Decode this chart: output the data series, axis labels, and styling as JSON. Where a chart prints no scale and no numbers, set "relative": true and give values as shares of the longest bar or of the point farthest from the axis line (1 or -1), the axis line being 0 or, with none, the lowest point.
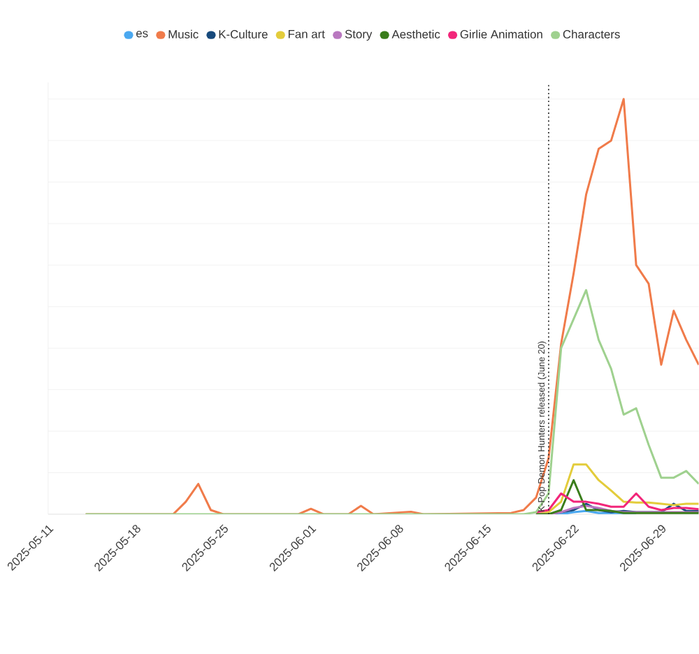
{
  "chart_data": {
    "type": "line",
    "relative": true,
    "legend": "top",
    "grid": "y",
    "line_style": "solid",
    "marker": "none",
    "xlim": [
      "2025-05-11",
      "2025-07-02"
    ],
    "xticks": [
      "2025-05-11",
      "2025-05-18",
      "2025-05-25",
      "2025-06-01",
      "2025-06-08",
      "2025-06-15",
      "2025-06-22",
      "2025-06-29"
    ],
    "ref_lines": [
      {
        "axis": "x",
        "value": "2025-06-20",
        "label": "K-Pop Demon Hunters released (June 20)",
        "line_style": "dotted",
        "color": "#333333"
      }
    ],
    "series": [
      {
        "name": "es",
        "color": "#4aa8f0",
        "x": [
          "2025-06-19",
          "2025-06-20",
          "2025-06-21",
          "2025-06-22",
          "2025-06-23",
          "2025-06-24",
          "2025-06-25",
          "2025-06-26",
          "2025-06-27"
        ],
        "values": [
          0,
          0,
          0,
          0.005,
          0.008,
          0.003,
          0.003,
          0.003,
          0.003
        ]
      },
      {
        "name": "Music",
        "color": "#f07b4a",
        "x": [
          "2025-05-14",
          "2025-05-21",
          "2025-05-22",
          "2025-05-23",
          "2025-05-24",
          "2025-05-25",
          "2025-05-31",
          "2025-06-01",
          "2025-06-02",
          "2025-06-04",
          "2025-06-05",
          "2025-06-06",
          "2025-06-09",
          "2025-06-10",
          "2025-06-17",
          "2025-06-18",
          "2025-06-19",
          "2025-06-20",
          "2025-06-21",
          "2025-06-22",
          "2025-06-23",
          "2025-06-24",
          "2025-06-25",
          "2025-06-26",
          "2025-06-27",
          "2025-06-28",
          "2025-06-29",
          "2025-06-30",
          "2025-07-01",
          "2025-07-02"
        ],
        "values": [
          0,
          0,
          0.03,
          0.073,
          0.01,
          0,
          0,
          0.013,
          0,
          0,
          0.02,
          0,
          0.006,
          0,
          0.003,
          0.01,
          0.04,
          0.135,
          0.41,
          0.58,
          0.77,
          0.88,
          0.9,
          1,
          0.6,
          0.555,
          0.36,
          0.49,
          0.42,
          0.36
        ]
      },
      {
        "name": "K-Culture",
        "color": "#174a7c",
        "x": [
          "2025-06-19",
          "2025-06-20",
          "2025-06-21",
          "2025-06-22",
          "2025-06-23",
          "2025-06-24",
          "2025-06-25",
          "2025-06-26",
          "2025-06-27",
          "2025-06-28",
          "2025-06-29",
          "2025-06-30",
          "2025-07-01",
          "2025-07-02"
        ],
        "values": [
          0,
          0,
          0.005,
          0.01,
          0.025,
          0.01,
          0.005,
          0.008,
          0.005,
          0.005,
          0.005,
          0.025,
          0.008,
          0.008
        ]
      },
      {
        "name": "Fan art",
        "color": "#e3cc3b",
        "x": [
          "2025-06-19",
          "2025-06-20",
          "2025-06-21",
          "2025-06-22",
          "2025-06-23",
          "2025-06-24",
          "2025-06-25",
          "2025-06-26",
          "2025-06-27",
          "2025-06-28",
          "2025-06-29",
          "2025-06-30",
          "2025-07-01",
          "2025-07-02"
        ],
        "values": [
          0,
          0.005,
          0.03,
          0.12,
          0.12,
          0.082,
          0.057,
          0.03,
          0.028,
          0.028,
          0.025,
          0.022,
          0.025,
          0.025
        ]
      },
      {
        "name": "Story",
        "color": "#b978c0",
        "x": [
          "2025-06-19",
          "2025-06-20",
          "2025-06-21",
          "2025-06-22",
          "2025-06-23",
          "2025-06-24",
          "2025-06-25",
          "2025-06-26",
          "2025-06-27",
          "2025-06-28",
          "2025-06-29",
          "2025-06-30",
          "2025-07-01",
          "2025-07-02"
        ],
        "values": [
          0,
          0,
          0.005,
          0.015,
          0.02,
          0.015,
          0.008,
          0.005,
          0.005,
          0.005,
          0.005,
          0.005,
          0.005,
          0.005
        ]
      },
      {
        "name": "Aesthetic",
        "color": "#3a7d1b",
        "x": [
          "2025-06-19",
          "2025-06-20",
          "2025-06-21",
          "2025-06-22",
          "2025-06-23",
          "2025-06-24",
          "2025-06-25",
          "2025-06-26",
          "2025-06-27",
          "2025-06-28",
          "2025-06-29",
          "2025-06-30",
          "2025-07-01",
          "2025-07-02"
        ],
        "values": [
          0,
          0,
          0.01,
          0.082,
          0.01,
          0.01,
          0.008,
          0.003,
          0.003,
          0.003,
          0.003,
          0.003,
          0.003,
          0.003
        ]
      },
      {
        "name": "Girlie Animation",
        "color": "#f2267a",
        "x": [
          "2025-06-19",
          "2025-06-20",
          "2025-06-21",
          "2025-06-22",
          "2025-06-23",
          "2025-06-24",
          "2025-06-25",
          "2025-06-26",
          "2025-06-27",
          "2025-06-28",
          "2025-06-29",
          "2025-06-30",
          "2025-07-01",
          "2025-07-02"
        ],
        "values": [
          0.005,
          0.01,
          0.05,
          0.03,
          0.03,
          0.025,
          0.018,
          0.018,
          0.05,
          0.018,
          0.01,
          0.015,
          0.015,
          0.012
        ]
      },
      {
        "name": "Characters",
        "color": "#9fd18f",
        "x": [
          "2025-05-14",
          "2025-06-18",
          "2025-06-19",
          "2025-06-20",
          "2025-06-21",
          "2025-06-22",
          "2025-06-23",
          "2025-06-24",
          "2025-06-25",
          "2025-06-26",
          "2025-06-27",
          "2025-06-28",
          "2025-06-29",
          "2025-06-30",
          "2025-07-01",
          "2025-07-02"
        ],
        "values": [
          0,
          0,
          0.005,
          0.05,
          0.4,
          0.47,
          0.54,
          0.42,
          0.35,
          0.24,
          0.255,
          0.167,
          0.088,
          0.088,
          0.104,
          0.073
        ]
      }
    ]
  }
}
